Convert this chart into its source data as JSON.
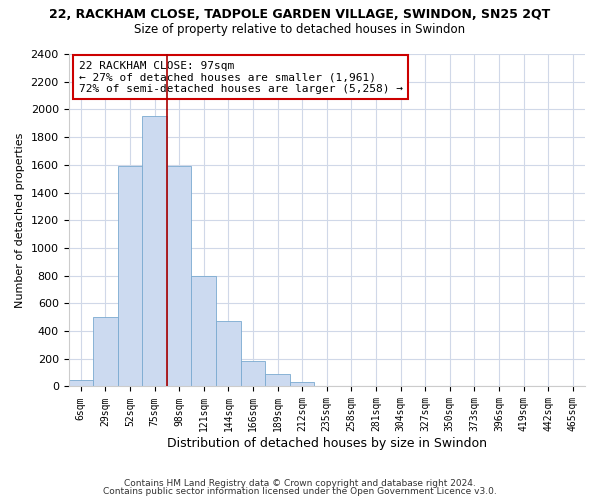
{
  "title_top": "22, RACKHAM CLOSE, TADPOLE GARDEN VILLAGE, SWINDON, SN25 2QT",
  "title_sub": "Size of property relative to detached houses in Swindon",
  "xlabel": "Distribution of detached houses by size in Swindon",
  "ylabel": "Number of detached properties",
  "bar_color": "#ccdaf0",
  "bar_edge_color": "#7aaad0",
  "categories": [
    "6sqm",
    "29sqm",
    "52sqm",
    "75sqm",
    "98sqm",
    "121sqm",
    "144sqm",
    "166sqm",
    "189sqm",
    "212sqm",
    "235sqm",
    "258sqm",
    "281sqm",
    "304sqm",
    "327sqm",
    "350sqm",
    "373sqm",
    "396sqm",
    "419sqm",
    "442sqm",
    "465sqm"
  ],
  "values": [
    50,
    500,
    1590,
    1950,
    1590,
    800,
    470,
    185,
    90,
    30,
    5,
    5,
    0,
    0,
    0,
    0,
    0,
    0,
    0,
    0,
    0
  ],
  "vline_index": 3.5,
  "vline_color": "#aa0000",
  "annotation_line1": "22 RACKHAM CLOSE: 97sqm",
  "annotation_line2": "← 27% of detached houses are smaller (1,961)",
  "annotation_line3": "72% of semi-detached houses are larger (5,258) →",
  "ylim": [
    0,
    2400
  ],
  "yticks": [
    0,
    200,
    400,
    600,
    800,
    1000,
    1200,
    1400,
    1600,
    1800,
    2000,
    2200,
    2400
  ],
  "footer1": "Contains HM Land Registry data © Crown copyright and database right 2024.",
  "footer2": "Contains public sector information licensed under the Open Government Licence v3.0.",
  "background_color": "#ffffff",
  "grid_color": "#d0d8e8"
}
